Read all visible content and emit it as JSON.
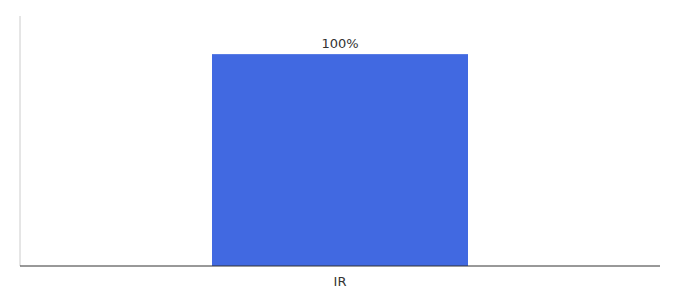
{
  "chart_data": {
    "type": "bar",
    "categories": [
      "IR"
    ],
    "values": [
      100
    ],
    "value_labels": [
      "100%"
    ],
    "color": "#4169e1",
    "ylim": [
      0,
      118
    ],
    "data_labels": true,
    "tick_labels": "x",
    "grid": false
  }
}
